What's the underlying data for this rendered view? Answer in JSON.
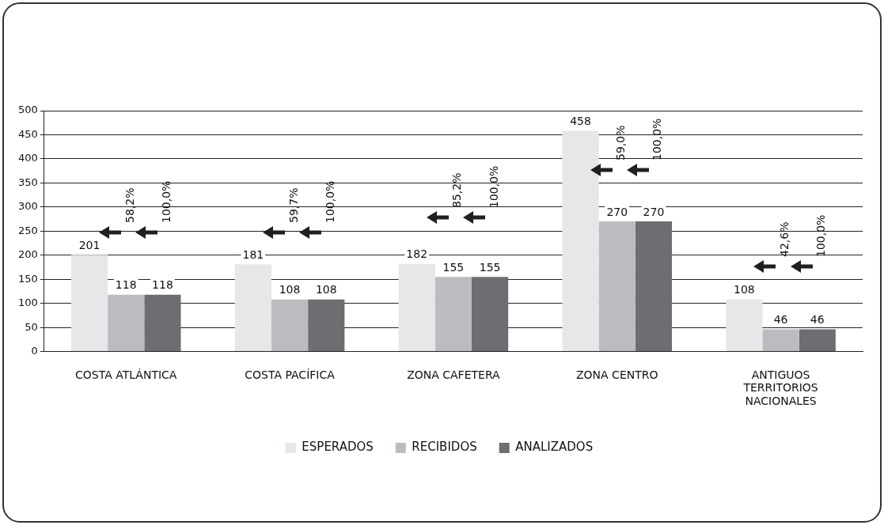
{
  "chart_data": {
    "type": "bar",
    "categories": [
      "COSTA ATLÁNTICA",
      "COSTA PACÍFICA",
      "ZONA CAFETERA",
      "ZONA CENTRO",
      "ANTIGUOS TERRITORIOS NACIONALES"
    ],
    "series": [
      {
        "name": "ESPERADOS",
        "color": "#e6e7e8",
        "values": [
          201,
          181,
          182,
          458,
          108
        ]
      },
      {
        "name": "RECIBIDOS",
        "color": "#bbbcbf",
        "values": [
          118,
          108,
          155,
          270,
          46
        ]
      },
      {
        "name": "ANALIZADOS",
        "color": "#6d6e71",
        "values": [
          118,
          108,
          155,
          270,
          46
        ]
      }
    ],
    "ylim": [
      0,
      500
    ],
    "yticks": [
      0,
      50,
      100,
      150,
      200,
      250,
      300,
      350,
      400,
      450,
      500
    ],
    "grid": "y",
    "legend": "bottom",
    "data_labels": true,
    "annotations": [
      "58,2%",
      "100,0%",
      "59,7%",
      "100,0%",
      "85,2%",
      "100,0%",
      "59,0%",
      "100,0%",
      "42,6%",
      "100,0%"
    ]
  }
}
